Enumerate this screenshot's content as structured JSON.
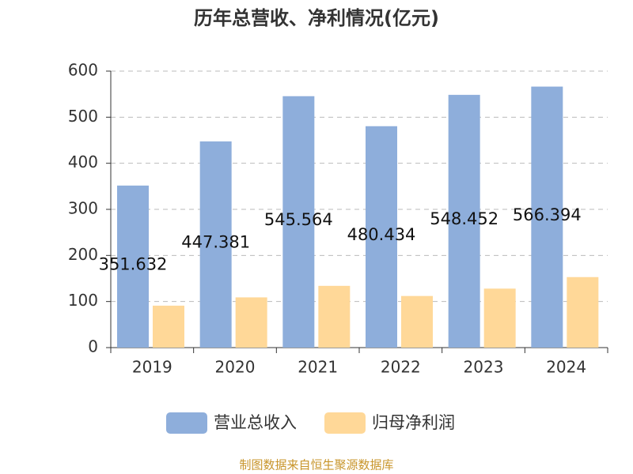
{
  "chart_data": {
    "type": "bar",
    "title": "历年总营收、净利情况(亿元)",
    "categories": [
      "2019",
      "2020",
      "2021",
      "2022",
      "2023",
      "2024"
    ],
    "series": [
      {
        "name": "营业总收入",
        "color": "#8eaedb",
        "values": [
          351.632,
          447.381,
          545.564,
          480.434,
          548.452,
          566.394
        ],
        "show_labels": true
      },
      {
        "name": "归母净利润",
        "color": "#ffd898",
        "values": [
          91,
          109,
          134,
          112,
          128,
          153
        ]
      }
    ],
    "ylim": [
      0,
      600
    ],
    "yticks": [
      0,
      100,
      200,
      300,
      400,
      500,
      600
    ],
    "grid": true,
    "source": "制图数据来自恒生聚源数据库"
  }
}
